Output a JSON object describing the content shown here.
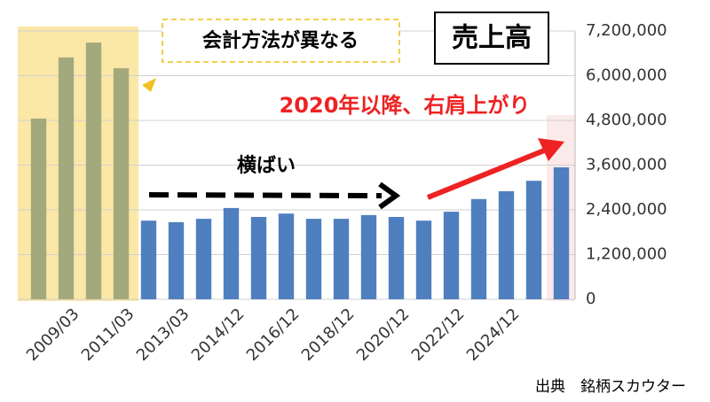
{
  "chart_data": {
    "type": "bar",
    "title": "売上高",
    "categories": [
      null,
      "2009/03",
      null,
      "2011/03",
      null,
      "2013/03",
      null,
      "2014/12",
      null,
      "2016/12",
      null,
      "2018/12",
      null,
      "2020/12",
      null,
      "2022/12",
      null,
      "2024/12",
      null,
      null
    ],
    "values": [
      4850000,
      6490000,
      6890000,
      6200000,
      2110000,
      2070000,
      2160000,
      2450000,
      2210000,
      2300000,
      2160000,
      2160000,
      2260000,
      2210000,
      2110000,
      2350000,
      2690000,
      2900000,
      3180000,
      3540000
    ],
    "colors": [
      "#a3a97c",
      "#a3a97c",
      "#a3a97c",
      "#a3a97c",
      "#4f7fbf",
      "#4f7fbf",
      "#4f7fbf",
      "#4f7fbf",
      "#4f7fbf",
      "#4f7fbf",
      "#4f7fbf",
      "#4f7fbf",
      "#4f7fbf",
      "#4f7fbf",
      "#4f7fbf",
      "#4f7fbf",
      "#4f7fbf",
      "#4f7fbf",
      "#4f7fbf",
      "#4f7fbf"
    ],
    "ylim": [
      0,
      7200000
    ],
    "yticks": [
      0,
      {
        "value": 1200000,
        "label": "1,200,000"
      },
      {
        "value": 2400000,
        "label": "2,400,000"
      },
      {
        "value": 3600000,
        "label": "3,600,000"
      },
      {
        "value": 4800000,
        "label": "4,800,000"
      },
      {
        "value": 6000000,
        "label": "6,000,000"
      },
      {
        "value": 7200000,
        "label": "7,200,000"
      }
    ],
    "grid": true,
    "annotations": [
      "会計方法が異なる",
      "2020年以降、右肩上がり",
      "横ばい"
    ],
    "source": "出典　銘柄スカウター"
  }
}
